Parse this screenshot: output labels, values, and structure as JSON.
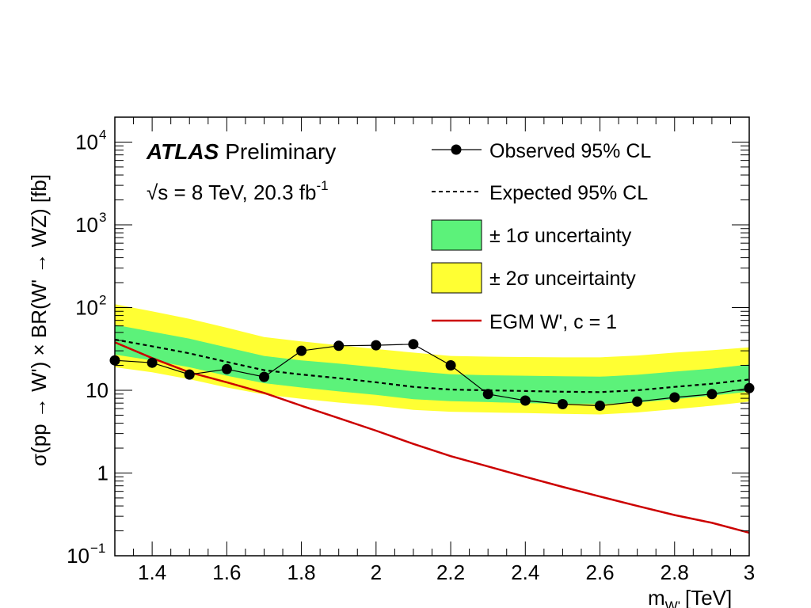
{
  "chart_data": {
    "type": "line",
    "experiment": "ATLAS",
    "experiment_tag": "Preliminary",
    "energy_label_prefix": "√s = 8 TeV, 20.3 fb",
    "energy_label_sup": "-1",
    "xlabel_main": "m",
    "xlabel_sub": "W'",
    "xlabel_unit": "[TeV]",
    "ylabel": "σ(pp → W') × BR(W' → WZ) [fb]",
    "xlim": [
      1.3,
      3.0
    ],
    "ylim": [
      0.1,
      20000
    ],
    "yscale": "log",
    "x_ticks": [
      {
        "value": 1.4,
        "label": "1.4"
      },
      {
        "value": 1.6,
        "label": "1.6"
      },
      {
        "value": 1.8,
        "label": "1.8"
      },
      {
        "value": 2.0,
        "label": "2"
      },
      {
        "value": 2.2,
        "label": "2.2"
      },
      {
        "value": 2.4,
        "label": "2.4"
      },
      {
        "value": 2.6,
        "label": "2.6"
      },
      {
        "value": 2.8,
        "label": "2.8"
      },
      {
        "value": 3.0,
        "label": "3"
      }
    ],
    "y_ticks": [
      {
        "value": 0.1,
        "base": "10",
        "exp": "−1"
      },
      {
        "value": 1,
        "base": "1",
        "exp": ""
      },
      {
        "value": 10,
        "base": "10",
        "exp": ""
      },
      {
        "value": 100,
        "base": "10",
        "exp": "2"
      },
      {
        "value": 1000,
        "base": "10",
        "exp": "3"
      },
      {
        "value": 10000,
        "base": "10",
        "exp": "4"
      }
    ],
    "x": [
      1.3,
      1.4,
      1.5,
      1.6,
      1.7,
      1.8,
      1.9,
      2.0,
      2.1,
      2.2,
      2.3,
      2.4,
      2.5,
      2.6,
      2.7,
      2.8,
      2.9,
      3.0
    ],
    "series": [
      {
        "name": "Observed 95% CL",
        "kind": "observed",
        "color": "#000000",
        "values": [
          23,
          21.5,
          15.5,
          18,
          14.5,
          30,
          34.5,
          35,
          36,
          20,
          9,
          7.5,
          6.8,
          6.5,
          7.3,
          8.2,
          9,
          10.6
        ]
      },
      {
        "name": "Expected 95% CL",
        "kind": "expected",
        "color": "#000000",
        "values": [
          41,
          34,
          28,
          22,
          17.5,
          15.5,
          14,
          12.5,
          11,
          10.2,
          10,
          9.8,
          9.6,
          9.5,
          10,
          11,
          12,
          13.5
        ]
      },
      {
        "name": "± 1σ uncertainty",
        "kind": "band1",
        "color": "#5cf27a",
        "lower": [
          27,
          23,
          19,
          15,
          12.2,
          10.8,
          9.7,
          8.8,
          7.8,
          7.4,
          7.2,
          7.0,
          6.9,
          6.8,
          7.1,
          7.8,
          8.6,
          9.6
        ],
        "upper": [
          62,
          51,
          42,
          33,
          26,
          23,
          21,
          19,
          17,
          15.6,
          15.2,
          15,
          14.8,
          14.6,
          15.4,
          16.8,
          18.3,
          20.5
        ]
      },
      {
        "name": "± 2σ unceirtainty",
        "kind": "band2",
        "color": "#ffff33",
        "lower": [
          19,
          16.5,
          13.6,
          10.8,
          8.9,
          7.9,
          7.1,
          6.5,
          5.8,
          5.5,
          5.4,
          5.3,
          5.2,
          5.1,
          5.4,
          5.9,
          6.5,
          7.3
        ],
        "upper": [
          110,
          90,
          73,
          57,
          44,
          39,
          35,
          31.5,
          28.5,
          26,
          25.5,
          25.2,
          25,
          25,
          26.3,
          28.5,
          30.5,
          33
        ]
      },
      {
        "name": "EGM W', c = 1",
        "kind": "theory",
        "color": "#cc0000",
        "values": [
          38,
          24.5,
          16.5,
          12.5,
          9.3,
          6.5,
          4.6,
          3.25,
          2.25,
          1.6,
          1.2,
          0.9,
          0.68,
          0.52,
          0.4,
          0.31,
          0.25,
          0.19
        ]
      }
    ]
  }
}
